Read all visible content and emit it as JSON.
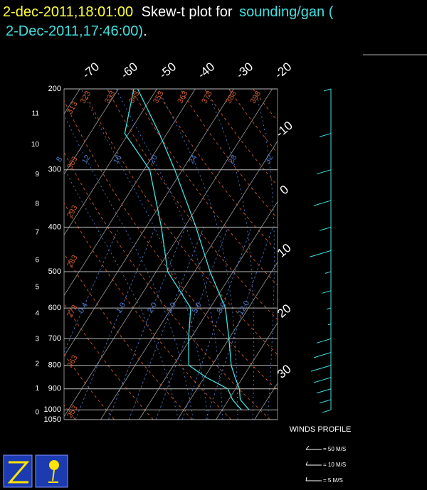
{
  "chart_data": {
    "type": "skew-t",
    "title": {
      "time": "2-dec-2011,18:01:00",
      "text": "Skew-t plot for",
      "station": "sounding/gan (",
      "obs_time": "2-Dec-2011,17:46:00)",
      "end": "."
    },
    "log_y": true,
    "ylim": [
      1050,
      200
    ],
    "yticks": [
      200,
      300,
      400,
      500,
      600,
      700,
      800,
      900,
      1000,
      1050
    ],
    "xlim": [
      -19.5,
      36
    ],
    "xticks": [
      -70,
      -60,
      -50,
      -40,
      -30,
      -20,
      -10,
      0,
      10,
      20,
      30
    ],
    "height_ticks": [
      0,
      1,
      2,
      3,
      4,
      5,
      6,
      7,
      8,
      9,
      10,
      11
    ],
    "dry_adiabats": {
      "color": "#c8582e",
      "values": [
        253,
        263,
        273,
        283,
        293,
        303,
        313,
        323,
        333,
        343,
        353,
        363,
        373,
        383,
        393
      ]
    },
    "moist_adiabats": {
      "color": "#4f78c8",
      "values": [
        8,
        12,
        16,
        20,
        24,
        28,
        32
      ]
    },
    "mixing_ratios": {
      "color": "#4f78c8",
      "values": [
        {
          "value": 0.4,
          "label": "0.4"
        },
        {
          "value": 1,
          "label": "1.0"
        },
        {
          "value": 2,
          "label": "2.0"
        },
        {
          "value": 3,
          "label": "3.0"
        },
        {
          "value": 5,
          "label": "5.0"
        },
        {
          "value": 8,
          "label": "8.0"
        },
        {
          "value": 12,
          "label": "12.0"
        }
      ]
    },
    "pressure": [
      1000,
      950,
      900,
      850,
      800,
      700,
      600,
      500,
      400,
      300,
      250,
      200
    ],
    "series": [
      {
        "name": "temperature",
        "color": "#3fe0e0",
        "values": [
          27,
          23,
          21,
          18,
          15,
          10,
          4,
          -6,
          -17,
          -32,
          -42,
          -55
        ]
      },
      {
        "name": "dewpoint",
        "color": "#3fe0e0",
        "values": [
          25,
          21,
          18,
          10.5,
          4,
          -0.5,
          -5,
          -17,
          -26,
          -38.5,
          -51,
          -56
        ]
      }
    ],
    "winds": {
      "title": "WINDS PROFILE",
      "color": "#3fe0e0",
      "pressure": [
        200,
        250,
        300,
        350,
        400,
        450,
        500,
        550,
        600,
        650,
        700,
        750,
        800,
        850,
        900,
        950,
        1000
      ],
      "speed": [
        5,
        8,
        10,
        12,
        8,
        15,
        4,
        6,
        3,
        2,
        10,
        12,
        14,
        12,
        10,
        8,
        6
      ],
      "legend": [
        {
          "value": 50,
          "label": "= 50 M/S"
        },
        {
          "value": 10,
          "label": "= 10 M/S"
        },
        {
          "value": 5,
          "label": "= 5 M/S"
        }
      ]
    }
  }
}
